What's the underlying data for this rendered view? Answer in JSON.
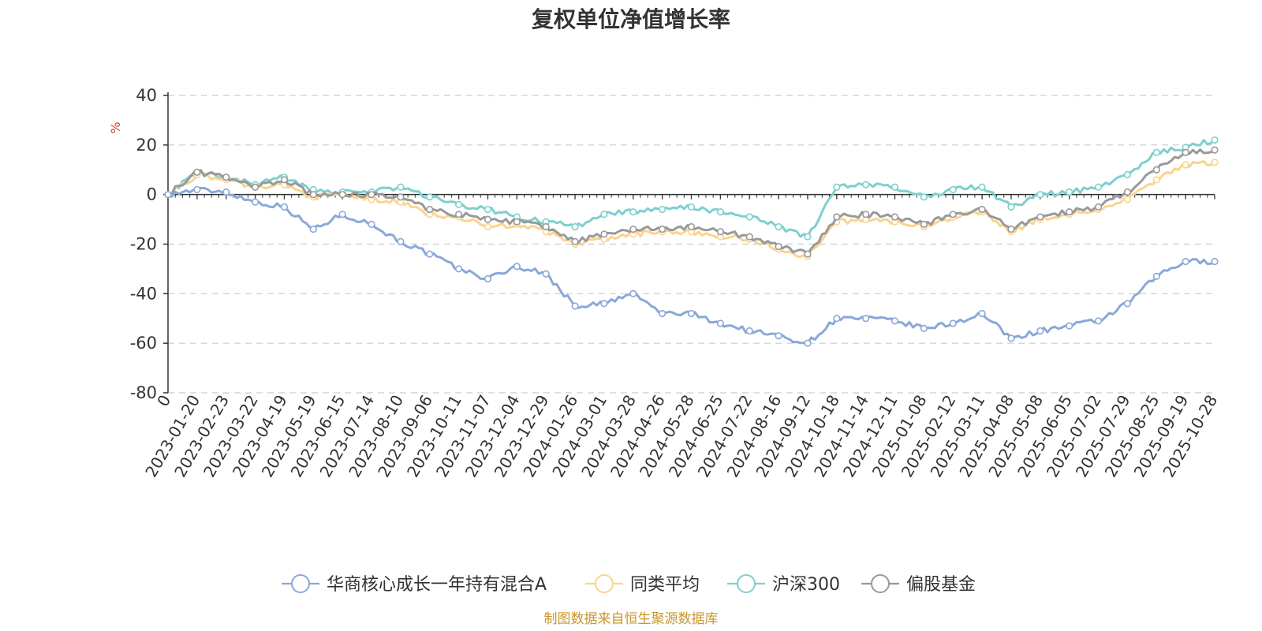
{
  "chart_data": {
    "type": "line",
    "title": "复权单位净值增长率",
    "ylabel": "%",
    "ylim": [
      -80,
      40
    ],
    "yticks": [
      40,
      20,
      0,
      -20,
      -40,
      -60,
      -80
    ],
    "grid": true,
    "legend_position": "bottom",
    "x_labels": [
      "0",
      "2023-01-20",
      "2023-02-23",
      "2023-03-22",
      "2023-04-19",
      "2023-05-19",
      "2023-06-15",
      "2023-07-14",
      "2023-08-10",
      "2023-09-06",
      "2023-10-11",
      "2023-11-07",
      "2023-12-04",
      "2023-12-29",
      "2024-01-26",
      "2024-03-01",
      "2024-03-28",
      "2024-04-26",
      "2024-05-28",
      "2024-06-25",
      "2024-07-22",
      "2024-08-16",
      "2024-09-12",
      "2024-10-18",
      "2024-11-14",
      "2024-12-11",
      "2025-01-08",
      "2025-02-12",
      "2025-03-11",
      "2025-04-08",
      "2025-05-08",
      "2025-06-05",
      "2025-07-02",
      "2025-07-29",
      "2025-08-25",
      "2025-09-19",
      "2025-10-28"
    ],
    "series": [
      {
        "name": "华商核心成长一年持有混合A",
        "color": "#8aa8d8",
        "values": [
          0,
          2,
          1,
          -3,
          -5,
          -14,
          -8,
          -12,
          -19,
          -24,
          -30,
          -34,
          -29,
          -32,
          -45,
          -44,
          -40,
          -48,
          -48,
          -52,
          -55,
          -57,
          -60,
          -50,
          -50,
          -51,
          -54,
          -52,
          -48,
          -58,
          -55,
          -53,
          -51,
          -44,
          -33,
          -27,
          -27
        ]
      },
      {
        "name": "同类平均",
        "color": "#fbd38e",
        "values": [
          0,
          8,
          6,
          3,
          4,
          -1,
          0,
          -2,
          -3,
          -8,
          -9,
          -13,
          -12,
          -15,
          -20,
          -18,
          -16,
          -15,
          -15,
          -17,
          -18,
          -22,
          -25,
          -11,
          -10,
          -11,
          -13,
          -9,
          -7,
          -15,
          -10,
          -8,
          -6,
          -2,
          6,
          12,
          13
        ]
      },
      {
        "name": "沪深300",
        "color": "#7dcfd0",
        "values": [
          0,
          9,
          7,
          4,
          7,
          2,
          1,
          1,
          3,
          -1,
          -4,
          -6,
          -9,
          -11,
          -13,
          -8,
          -7,
          -6,
          -5,
          -7,
          -9,
          -13,
          -17,
          3,
          4,
          3,
          -1,
          2,
          3,
          -5,
          0,
          1,
          3,
          8,
          17,
          19,
          22
        ]
      },
      {
        "name": "偏股基金",
        "color": "#999999",
        "values": [
          0,
          9,
          7,
          3,
          6,
          0,
          0,
          0,
          -1,
          -6,
          -8,
          -10,
          -11,
          -13,
          -19,
          -16,
          -14,
          -14,
          -13,
          -15,
          -17,
          -21,
          -24,
          -9,
          -8,
          -9,
          -12,
          -8,
          -6,
          -14,
          -9,
          -7,
          -5,
          1,
          10,
          17,
          18
        ]
      }
    ]
  },
  "source_text": "制图数据来自恒生聚源数据库"
}
